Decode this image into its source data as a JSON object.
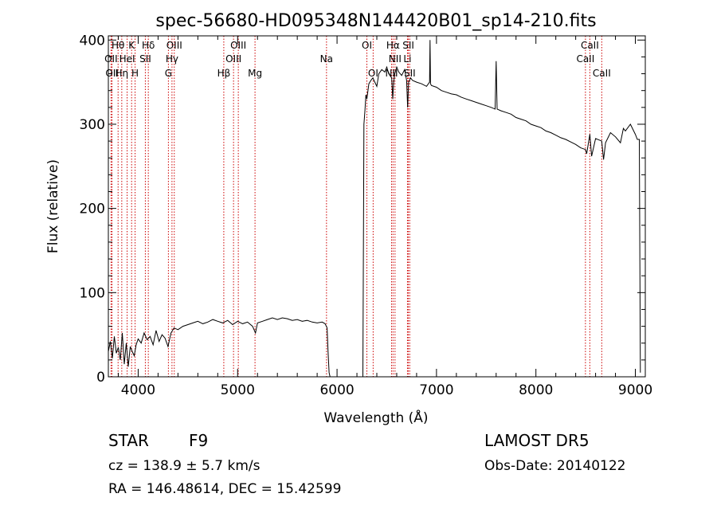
{
  "chart_data": {
    "type": "line",
    "title": "spec-56680-HD095348N144420B01_sp14-210.fits",
    "xlabel": "Wavelength (Å)",
    "ylabel": "Flux (relative)",
    "xlim": [
      3700,
      9100
    ],
    "ylim": [
      0,
      405
    ],
    "xticks": [
      "4000",
      "5000",
      "6000",
      "7000",
      "8000",
      "9000"
    ],
    "yticks": [
      "0",
      "100",
      "200",
      "300",
      "400"
    ],
    "grid": false,
    "line_color": "#000000",
    "marker_color": "#cc0000",
    "spectral_lines": [
      {
        "name": "Hθ",
        "wavelength": 3798,
        "row": 0
      },
      {
        "name": "Hη",
        "wavelength": 3835,
        "row": 2
      },
      {
        "name": "OII",
        "wavelength": 3727,
        "row": 1
      },
      {
        "name": "OII",
        "wavelength": 3737,
        "row": 2
      },
      {
        "name": "HeI",
        "wavelength": 3889,
        "row": 1
      },
      {
        "name": "K",
        "wavelength": 3934,
        "row": 0
      },
      {
        "name": "H",
        "wavelength": 3969,
        "row": 2
      },
      {
        "name": "Hδ",
        "wavelength": 4102,
        "row": 0
      },
      {
        "name": "SII",
        "wavelength": 4072,
        "row": 1
      },
      {
        "name": "G",
        "wavelength": 4304,
        "row": 2
      },
      {
        "name": "Hγ",
        "wavelength": 4340,
        "row": 1
      },
      {
        "name": "OIII",
        "wavelength": 4363,
        "row": 0
      },
      {
        "name": "Hβ",
        "wavelength": 4861,
        "row": 2
      },
      {
        "name": "OIII",
        "wavelength": 4959,
        "row": 1
      },
      {
        "name": "OIII",
        "wavelength": 5007,
        "row": 0
      },
      {
        "name": "Mg",
        "wavelength": 5175,
        "row": 2
      },
      {
        "name": "Na",
        "wavelength": 5894,
        "row": 1
      },
      {
        "name": "OI",
        "wavelength": 6300,
        "row": 0
      },
      {
        "name": "OI",
        "wavelength": 6363,
        "row": 2
      },
      {
        "name": "NII",
        "wavelength": 6548,
        "row": 2
      },
      {
        "name": "Hα",
        "wavelength": 6563,
        "row": 0
      },
      {
        "name": "NII",
        "wavelength": 6583,
        "row": 1
      },
      {
        "name": "SII",
        "wavelength": 6717,
        "row": 0
      },
      {
        "name": "SII",
        "wavelength": 6731,
        "row": 2
      },
      {
        "name": "Li",
        "wavelength": 6708,
        "row": 1
      },
      {
        "name": "CaII",
        "wavelength": 8498,
        "row": 1
      },
      {
        "name": "CaII",
        "wavelength": 8542,
        "row": 0
      },
      {
        "name": "CaII",
        "wavelength": 8662,
        "row": 2
      }
    ],
    "series": [
      {
        "x": [
          3700,
          3720,
          3740,
          3760,
          3780,
          3800,
          3820,
          3840,
          3860,
          3880,
          3900,
          3920,
          3940,
          3960,
          3980,
          4000,
          4030,
          4060,
          4090,
          4120,
          4150,
          4180,
          4210,
          4240,
          4270,
          4300,
          4330,
          4360,
          4400,
          4450,
          4500,
          4550,
          4600,
          4650,
          4700,
          4750,
          4800,
          4850,
          4900,
          4950,
          5000,
          5050,
          5100,
          5150,
          5180,
          5200,
          5250,
          5300,
          5350,
          5400,
          5450,
          5500,
          5550,
          5600,
          5650,
          5700,
          5750,
          5800,
          5850,
          5880,
          5900,
          5910,
          5920,
          5930,
          6260,
          6270,
          6280,
          6290,
          6300,
          6320,
          6340,
          6360,
          6380,
          6400,
          6420,
          6450,
          6480,
          6500,
          6520,
          6550,
          6560,
          6570,
          6580,
          6600,
          6620,
          6650,
          6680,
          6700,
          6710,
          6720,
          6740,
          6760,
          6800,
          6850,
          6900,
          6930,
          6935,
          6940,
          6950,
          7000,
          7050,
          7100,
          7150,
          7200,
          7250,
          7300,
          7350,
          7400,
          7450,
          7500,
          7550,
          7590,
          7600,
          7610,
          7650,
          7700,
          7750,
          7800,
          7850,
          7900,
          7950,
          8000,
          8050,
          8100,
          8150,
          8200,
          8250,
          8300,
          8350,
          8400,
          8450,
          8498,
          8510,
          8542,
          8560,
          8600,
          8662,
          8680,
          8700,
          8750,
          8800,
          8850,
          8880,
          8900,
          8950,
          9000,
          9020,
          9040,
          9050
        ],
        "y": [
          30,
          42,
          22,
          48,
          28,
          35,
          20,
          52,
          15,
          40,
          12,
          36,
          30,
          25,
          38,
          45,
          40,
          52,
          44,
          48,
          38,
          55,
          42,
          50,
          46,
          36,
          52,
          58,
          56,
          60,
          62,
          64,
          66,
          63,
          65,
          68,
          66,
          64,
          67,
          62,
          66,
          63,
          65,
          60,
          52,
          64,
          66,
          68,
          70,
          68,
          70,
          69,
          67,
          68,
          66,
          67,
          65,
          64,
          65,
          63,
          58,
          30,
          5,
          0,
          0,
          300,
          315,
          335,
          330,
          348,
          352,
          355,
          350,
          345,
          360,
          365,
          362,
          368,
          360,
          355,
          330,
          350,
          360,
          368,
          362,
          358,
          365,
          352,
          320,
          350,
          355,
          352,
          350,
          348,
          345,
          350,
          400,
          348,
          346,
          344,
          340,
          338,
          336,
          335,
          332,
          330,
          328,
          326,
          324,
          322,
          320,
          318,
          375,
          318,
          316,
          314,
          312,
          308,
          306,
          304,
          300,
          298,
          296,
          292,
          290,
          287,
          284,
          282,
          279,
          276,
          272,
          270,
          265,
          288,
          262,
          283,
          280,
          258,
          278,
          290,
          285,
          278,
          295,
          292,
          300,
          288,
          282,
          282,
          5
        ]
      }
    ]
  },
  "info": {
    "object_type": "STAR",
    "subclass": "F9",
    "survey": "LAMOST DR5",
    "cz_label": "cz = 138.9 ± 5.7 km/s",
    "obs_date": "Obs-Date: 20140122",
    "coords": "RA = 146.48614, DEC =  15.42599"
  }
}
